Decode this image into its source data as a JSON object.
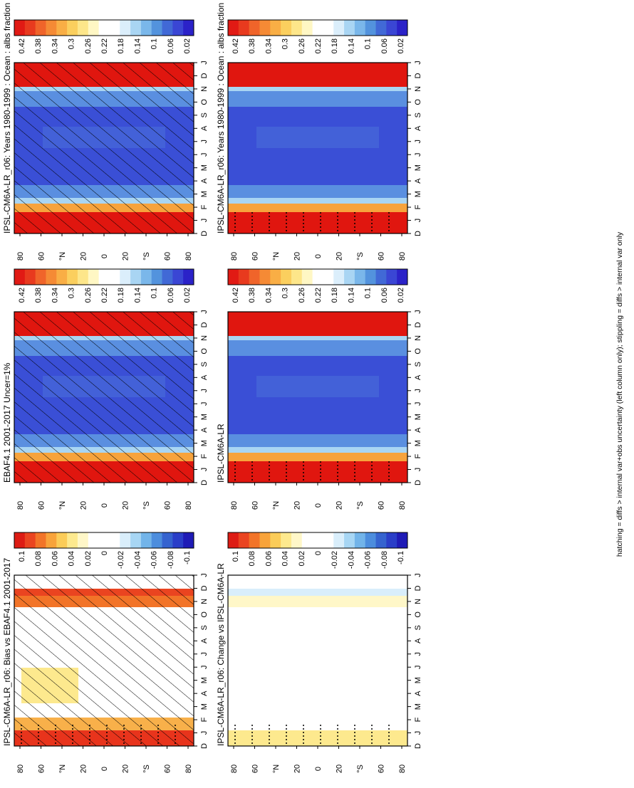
{
  "footnote": "hatching = diffs > internal var+obs uncertainty (left column only); stippling = diffs > internal var only",
  "chart_data": [
    {
      "type": "heatmap",
      "title": "IPSL-CM6A-LR_r06: Years 1980-1999 : Ocean : albs fraction",
      "x_ticks": [
        "D",
        "J",
        "F",
        "M",
        "A",
        "M",
        "J",
        "J",
        "A",
        "S",
        "O",
        "N",
        "D",
        "J"
      ],
      "y_ticks": [
        "80",
        "60",
        "°N",
        "20",
        "0",
        "20",
        "°S",
        "60",
        "80"
      ],
      "colorbar_ticks": [
        "0.42",
        "0.38",
        "0.34",
        "0.3",
        "0.26",
        "0.22",
        "0.18",
        "0.14",
        "0.1",
        "0.06",
        "0.02"
      ],
      "zlim": [
        0,
        0.44
      ],
      "hatching": true,
      "stippling": false
    },
    {
      "type": "heatmap",
      "title": "IPSL-CM6A-LR_r06: Years 1980-1999 : Ocean : albs fraction",
      "x_ticks": [
        "D",
        "J",
        "F",
        "M",
        "A",
        "M",
        "J",
        "J",
        "A",
        "S",
        "O",
        "N",
        "D",
        "J"
      ],
      "y_ticks": [
        "80",
        "60",
        "°N",
        "20",
        "0",
        "20",
        "°S",
        "60",
        "80"
      ],
      "colorbar_ticks": [
        "0.42",
        "0.38",
        "0.34",
        "0.3",
        "0.26",
        "0.22",
        "0.18",
        "0.14",
        "0.1",
        "0.06",
        "0.02"
      ],
      "zlim": [
        0,
        0.44
      ],
      "hatching": false,
      "stippling": true
    },
    {
      "type": "heatmap",
      "title": "EBAF4.1 2001-2017 Uncer=1%",
      "x_ticks": [
        "D",
        "J",
        "F",
        "M",
        "A",
        "M",
        "J",
        "J",
        "A",
        "S",
        "O",
        "N",
        "D",
        "J"
      ],
      "y_ticks": [
        "80",
        "60",
        "°N",
        "20",
        "0",
        "20",
        "°S",
        "60",
        "80"
      ],
      "colorbar_ticks": [
        "0.42",
        "0.38",
        "0.34",
        "0.3",
        "0.26",
        "0.22",
        "0.18",
        "0.14",
        "0.1",
        "0.06",
        "0.02"
      ],
      "zlim": [
        0,
        0.44
      ],
      "hatching": true,
      "stippling": false
    },
    {
      "type": "heatmap",
      "title": "IPSL-CM6A-LR",
      "x_ticks": [
        "D",
        "J",
        "F",
        "M",
        "A",
        "M",
        "J",
        "J",
        "A",
        "S",
        "O",
        "N",
        "D",
        "J"
      ],
      "y_ticks": [
        "80",
        "60",
        "°N",
        "20",
        "0",
        "20",
        "°S",
        "60",
        "80"
      ],
      "colorbar_ticks": [
        "0.42",
        "0.38",
        "0.34",
        "0.3",
        "0.26",
        "0.22",
        "0.18",
        "0.14",
        "0.1",
        "0.06",
        "0.02"
      ],
      "zlim": [
        0,
        0.44
      ],
      "hatching": false,
      "stippling": true
    },
    {
      "type": "heatmap",
      "title": "IPSL-CM6A-LR_r06: Bias vs EBAF4.1 2001-2017",
      "x_ticks": [
        "D",
        "J",
        "F",
        "M",
        "A",
        "M",
        "J",
        "J",
        "A",
        "S",
        "O",
        "N",
        "D",
        "J"
      ],
      "y_ticks": [
        "80",
        "60",
        "°N",
        "20",
        "0",
        "20",
        "°S",
        "60",
        "80"
      ],
      "colorbar_ticks": [
        "0.1",
        "0.08",
        "0.06",
        "0.04",
        "0.02",
        "0",
        "-0.02",
        "-0.04",
        "-0.06",
        "-0.08",
        "-0.1"
      ],
      "zlim": [
        -0.11,
        0.11
      ],
      "hatching": true,
      "stippling": true
    },
    {
      "type": "heatmap",
      "title": "IPSL-CM6A-LR_r06: Change vs IPSL-CM6A-LR",
      "x_ticks": [
        "D",
        "J",
        "F",
        "M",
        "A",
        "M",
        "J",
        "J",
        "A",
        "S",
        "O",
        "N",
        "D",
        "J"
      ],
      "y_ticks": [
        "80",
        "60",
        "°N",
        "20",
        "0",
        "20",
        "°S",
        "60",
        "80"
      ],
      "colorbar_ticks": [
        "0.1",
        "0.08",
        "0.06",
        "0.04",
        "0.02",
        "0",
        "-0.02",
        "-0.04",
        "-0.06",
        "-0.08",
        "-0.1"
      ],
      "zlim": [
        -0.11,
        0.11
      ],
      "hatching": false,
      "stippling": true
    }
  ]
}
